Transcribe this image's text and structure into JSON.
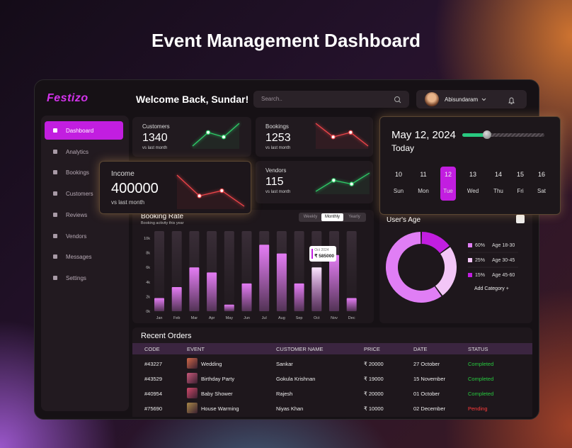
{
  "headline": "Event Management Dashboard",
  "app": {
    "logo": "Festizo",
    "welcome": "Welcome Back, Sundar!",
    "search_placeholder": "Search..",
    "user": "Abisundaram"
  },
  "nav": {
    "items": [
      "Dashboard",
      "Analytics",
      "Bookings",
      "Customers",
      "Reviews",
      "Vendors",
      "Messages",
      "Settings"
    ],
    "active": 0
  },
  "stats": [
    {
      "label": "Customers",
      "value": 1340,
      "note": "vs last month",
      "trend": [
        1,
        4,
        3,
        6
      ],
      "trend_color": "#2fd06a"
    },
    {
      "label": "Bookings",
      "value": 1253,
      "note": "vs last month",
      "trend": [
        5,
        2,
        3,
        0
      ],
      "trend_color": "#f0454a"
    },
    {
      "label": "Income",
      "value": 400000,
      "note": "vs last month",
      "trend": [
        6,
        2,
        3,
        0
      ],
      "trend_color": "#f0454a"
    },
    {
      "label": "Vendors",
      "value": 115,
      "note": "vs last month",
      "trend": [
        0,
        3,
        2,
        5
      ],
      "trend_color": "#2fd06a"
    }
  ],
  "calendar": {
    "date": "May 12, 2024",
    "label": "Today",
    "days": [
      {
        "number": 10,
        "name": "Sun"
      },
      {
        "number": 11,
        "name": "Mon"
      },
      {
        "number": 12,
        "name": "Tue"
      },
      {
        "number": 13,
        "name": "Wed"
      },
      {
        "number": 14,
        "name": "Thu"
      },
      {
        "number": 15,
        "name": "Fri"
      },
      {
        "number": 16,
        "name": "Sat"
      }
    ],
    "selected": 2
  },
  "chart_data": [
    {
      "type": "bar",
      "title": "Booking Rate",
      "subtitle": "Booking activity this year",
      "tabs": [
        "Weekly",
        "Monthly",
        "Yearly"
      ],
      "active_tab": 1,
      "categories": [
        "Jan",
        "Feb",
        "Mar",
        "Apr",
        "May",
        "Jun",
        "Jul",
        "Aug",
        "Sep",
        "Oct",
        "Nov",
        "Dec"
      ],
      "values": [
        1800,
        3300,
        6000,
        5300,
        900,
        3800,
        9100,
        7900,
        3800,
        6000,
        7700,
        1800
      ],
      "color": "#e47cf4",
      "highlight": 9,
      "annotation": {
        "title": "Oct 2024",
        "text": "₹ 585000"
      },
      "ylim": [
        0,
        10000
      ],
      "yticks": [
        {
          "value": 0,
          "label": "0k"
        },
        {
          "value": 2000,
          "label": "2k"
        },
        {
          "value": 4000,
          "label": "4k"
        },
        {
          "value": 6000,
          "label": "6k"
        },
        {
          "value": 8000,
          "label": "8k"
        },
        {
          "value": 10000,
          "label": "10k"
        }
      ]
    },
    {
      "type": "donut",
      "title": "User's Age",
      "categories": [
        "Age 18-30",
        "Age 30-45",
        "Age 45-60"
      ],
      "values": [
        60,
        25,
        15
      ],
      "value_labels": [
        "60%",
        "25%",
        "15%"
      ],
      "colors": [
        "#e07ef5",
        "#f3c6f7",
        "#c21ee0"
      ],
      "action": "Add Category +"
    }
  ],
  "orders": {
    "title": "Recent Orders",
    "columns": [
      "CODE",
      "EVENT",
      "CUSTOMER NAME",
      "PRICE",
      "DATE",
      "STATUS"
    ],
    "rows": [
      [
        "#43227",
        "Wedding",
        "Sankar",
        "₹ 20000",
        "27 October",
        "Completed"
      ],
      [
        "#43529",
        "Birthday Party",
        "Gokula Krishnan",
        "₹ 19000",
        "15 November",
        "Completed"
      ],
      [
        "#40954",
        "Baby Shower",
        "Rajesh",
        "₹ 20000",
        "01 October",
        "Completed"
      ],
      [
        "#75690",
        "House Warming",
        "Niyas Khan",
        "₹ 10000",
        "02 December",
        "Pending"
      ]
    ],
    "status_colors": [
      "#27c93f",
      "#27c93f",
      "#27c93f",
      "#ff3b3b"
    ]
  }
}
